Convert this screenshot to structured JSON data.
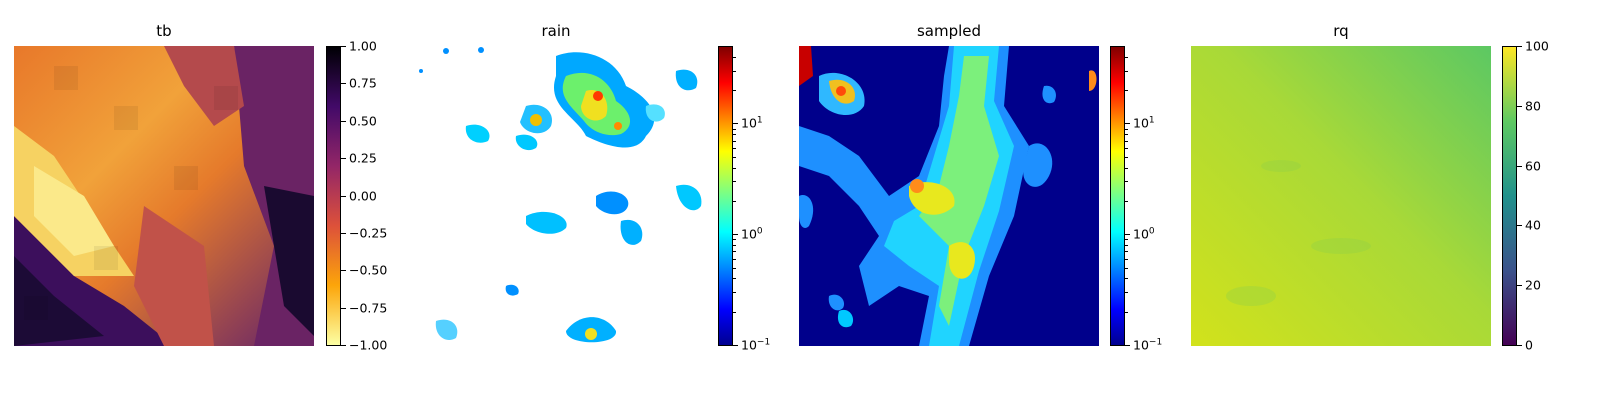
{
  "chart_data": [
    {
      "type": "heatmap",
      "title": "tb",
      "colormap": "inferno_r",
      "scale": "linear",
      "clim": [
        -1.0,
        1.0
      ],
      "colorbar_ticks": [
        "1.00",
        "0.75",
        "0.50",
        "0.25",
        "0.00",
        "−0.25",
        "−0.50",
        "−0.75",
        "−1.00"
      ],
      "colorbar_tick_values": [
        1.0,
        0.75,
        0.5,
        0.25,
        0.0,
        -0.25,
        -0.5,
        -0.75,
        -1.0
      ]
    },
    {
      "type": "heatmap",
      "title": "rain",
      "colormap": "jet",
      "scale": "log",
      "clim": [
        0.1,
        50
      ],
      "colorbar_ticks": [
        "10",
        "10",
        "10"
      ],
      "colorbar_tick_exponents": [
        "1",
        "0",
        "−1"
      ],
      "colorbar_tick_values": [
        10,
        1,
        0.1
      ],
      "background": "#ffffff"
    },
    {
      "type": "heatmap",
      "title": "sampled",
      "colormap": "jet",
      "scale": "log",
      "clim": [
        0.1,
        50
      ],
      "colorbar_ticks": [
        "10",
        "10",
        "10"
      ],
      "colorbar_tick_exponents": [
        "1",
        "0",
        "−1"
      ],
      "colorbar_tick_values": [
        10,
        1,
        0.1
      ]
    },
    {
      "type": "heatmap",
      "title": "rq",
      "colormap": "viridis",
      "scale": "linear",
      "clim": [
        0,
        100
      ],
      "colorbar_ticks": [
        "100",
        "80",
        "60",
        "40",
        "20",
        "0"
      ],
      "colorbar_tick_values": [
        100,
        80,
        60,
        40,
        20,
        0
      ]
    }
  ]
}
